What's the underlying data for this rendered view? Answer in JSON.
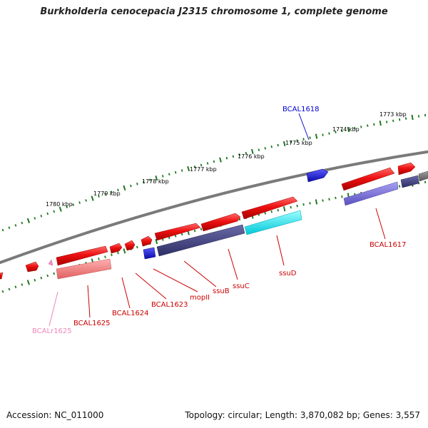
{
  "title": "Burkholderia cenocepacia J2315 chromosome 1, complete genome",
  "footer": {
    "accession": "Accession: NC_011000",
    "summary": "Topology: circular; Length: 3,870,082 bp; Genes: 3,557"
  },
  "colors": {
    "background": "#ffffff",
    "backbone": "#808080",
    "tick": "#1e7a1e",
    "gene_red": "#ee1111",
    "gene_dark_blue": "#1a14c8",
    "pseudogene_pink": "#f07a7a",
    "cds_slate": "#4a4a8a",
    "cds_cyan": "#00e8f0",
    "cds_lavender": "#7a70d8",
    "label_red": "#cc0000",
    "label_blue": "#0000cc",
    "label_pink": "#ee88bb"
  },
  "scale_labels": [
    {
      "text": "1773 kbp"
    },
    {
      "text": "1774 kbp"
    },
    {
      "text": "1775 kbp"
    },
    {
      "text": "1776 kbp"
    },
    {
      "text": "1777 kbp"
    },
    {
      "text": "1778 kbp"
    },
    {
      "text": "1779 kbp"
    },
    {
      "text": "1780 kbp"
    }
  ],
  "gene_labels": [
    {
      "text": "BCAL1618",
      "color": "label_blue"
    },
    {
      "text": "BCAL1617",
      "color": "label_red"
    },
    {
      "text": "ssuD",
      "color": "label_red"
    },
    {
      "text": "ssuC",
      "color": "label_red"
    },
    {
      "text": "ssuB",
      "color": "label_red"
    },
    {
      "text": "mopII",
      "color": "label_red"
    },
    {
      "text": "BCAL1623",
      "color": "label_red"
    },
    {
      "text": "BCAL1624",
      "color": "label_red"
    },
    {
      "text": "BCAL1625",
      "color": "label_red"
    },
    {
      "text": "BCALr1625",
      "color": "label_pink"
    }
  ]
}
